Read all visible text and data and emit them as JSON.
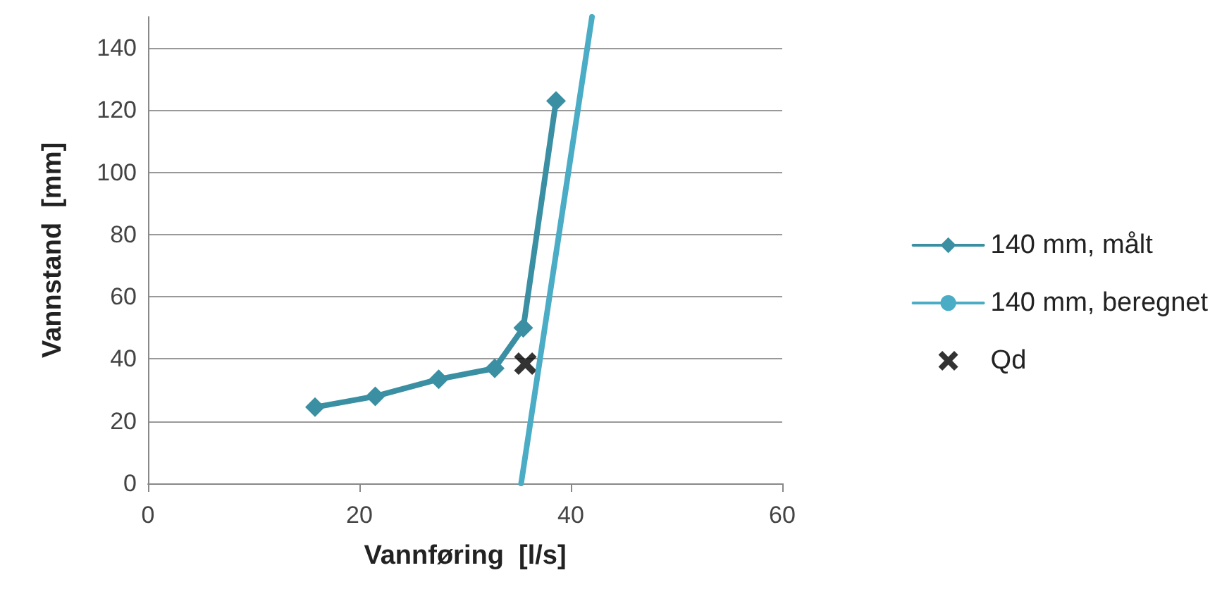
{
  "chart_data": {
    "type": "line",
    "xlabel": "Vannføring  [l/s]",
    "ylabel": "Vannstand  [mm]",
    "xlim": [
      0,
      60
    ],
    "xticks": [
      0,
      20,
      40,
      60
    ],
    "ylim": [
      0,
      150
    ],
    "yticks": [
      0,
      20,
      40,
      60,
      80,
      100,
      120,
      140
    ],
    "grid": "y",
    "legend": "right",
    "series": [
      {
        "name": "140 mm, målt",
        "color": "#3a8fa3",
        "marker": "diamond",
        "x": [
          15.8,
          21.5,
          27.5,
          32.8,
          35.5,
          38.6
        ],
        "values": [
          24.5,
          28,
          33.5,
          37,
          50,
          123
        ]
      },
      {
        "name": "140 mm, beregnet",
        "color": "#4bacc6",
        "marker": "none",
        "x": [
          35.3,
          42
        ],
        "values": [
          0,
          150
        ]
      },
      {
        "name": "Qd",
        "type": "scatter",
        "color": "#000000",
        "marker": "cross",
        "x": [
          35.7
        ],
        "values": [
          38.5
        ]
      }
    ]
  }
}
